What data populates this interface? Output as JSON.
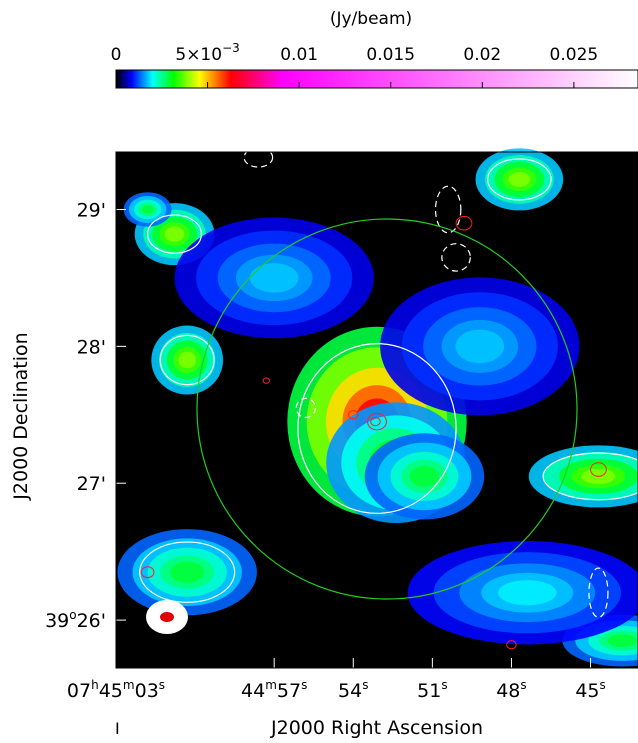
{
  "chart_data": {
    "type": "heatmap",
    "colorbar": {
      "label": "(Jy/beam)",
      "ticks": [
        {
          "value": 0,
          "text": "0"
        },
        {
          "value": 0.005,
          "text": "5×10",
          "exp": "−3"
        },
        {
          "value": 0.01,
          "text": "0.01"
        },
        {
          "value": 0.015,
          "text": "0.015"
        },
        {
          "value": 0.02,
          "text": "0.02"
        },
        {
          "value": 0.025,
          "text": "0.025"
        }
      ],
      "range": [
        0,
        0.0285
      ],
      "colors": [
        "#000000",
        "#0000ff",
        "#00ffff",
        "#00ff00",
        "#ffff00",
        "#ff0000",
        "#ff00ff",
        "#ffffff"
      ]
    },
    "xlabel": "J2000 Right Ascension",
    "ylabel": "J2000 Declination",
    "x_ticks": [
      {
        "value": 45.05,
        "h": "07",
        "m": "45",
        "s": "03"
      },
      {
        "value": 44.95,
        "m": "44",
        "s": "57"
      },
      {
        "value": 44.9,
        "s": "54"
      },
      {
        "value": 44.85,
        "s": "51"
      },
      {
        "value": 44.8,
        "s": "48"
      },
      {
        "value": 44.75,
        "s": "45"
      }
    ],
    "y_ticks": [
      {
        "value": 29,
        "text": "29'"
      },
      {
        "value": 28,
        "text": "28'"
      },
      {
        "value": 27,
        "text": "27'"
      },
      {
        "value": 26,
        "deg": "39",
        "min": "26'"
      }
    ],
    "x_range": [
      45.05,
      44.72
    ],
    "y_range": [
      25.65,
      29.42
    ],
    "footer_mark": "I",
    "overlays": {
      "green_circle": {
        "color": "#22cc22"
      },
      "contour_white": "#ffffff",
      "contour_red": "#ff2020",
      "beam": "white ellipse with red core"
    },
    "emission": [
      {
        "ra": 44.885,
        "dec": 27.45,
        "w": 0.045,
        "h": 0.55,
        "amp": 0.0065
      },
      {
        "ra": 44.873,
        "dec": 27.15,
        "w": 0.035,
        "h": 0.35,
        "amp": 0.0035
      },
      {
        "ra": 44.855,
        "dec": 27.05,
        "w": 0.03,
        "h": 0.25,
        "amp": 0.003
      },
      {
        "ra": 44.745,
        "dec": 27.05,
        "w": 0.035,
        "h": 0.18,
        "amp": 0.004
      },
      {
        "ra": 45.005,
        "dec": 27.9,
        "w": 0.018,
        "h": 0.2,
        "amp": 0.004
      },
      {
        "ra": 45.013,
        "dec": 28.82,
        "w": 0.02,
        "h": 0.18,
        "amp": 0.004
      },
      {
        "ra": 44.795,
        "dec": 29.22,
        "w": 0.022,
        "h": 0.18,
        "amp": 0.004
      },
      {
        "ra": 45.03,
        "dec": 29.0,
        "w": 0.012,
        "h": 0.1,
        "amp": 0.003
      },
      {
        "ra": 45.005,
        "dec": 26.35,
        "w": 0.035,
        "h": 0.25,
        "amp": 0.003
      },
      {
        "ra": 44.73,
        "dec": 25.85,
        "w": 0.03,
        "h": 0.15,
        "amp": 0.003
      },
      {
        "ra": 44.95,
        "dec": 28.5,
        "w": 0.05,
        "h": 0.35,
        "amp": 0.0018
      },
      {
        "ra": 44.82,
        "dec": 28.0,
        "w": 0.05,
        "h": 0.4,
        "amp": 0.0018
      },
      {
        "ra": 44.79,
        "dec": 26.2,
        "w": 0.06,
        "h": 0.3,
        "amp": 0.002
      }
    ]
  }
}
